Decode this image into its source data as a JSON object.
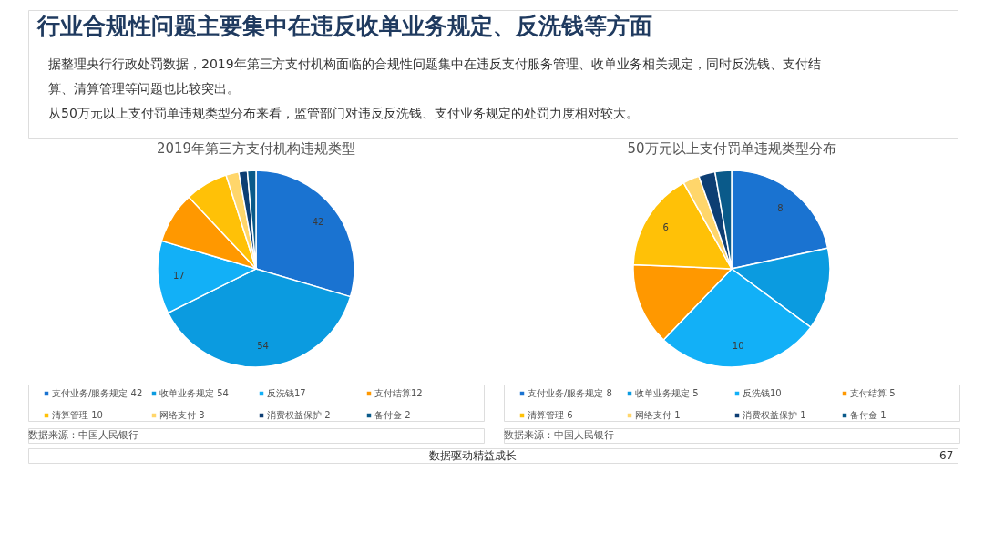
{
  "chart_data": [
    {
      "type": "pie",
      "title": "2019年第三方支付机构违规类型",
      "categories": [
        "支付业务/服务规定 42",
        "收单业务规定 54",
        "反洗钱17",
        "支付结算12",
        "清算管理 10",
        "网络支付 3",
        "消费权益保护 2",
        "备付金 2"
      ],
      "values": [
        42,
        54,
        17,
        12,
        10,
        3,
        2,
        2
      ],
      "value_labels": [
        "42",
        "54",
        "17",
        null,
        null,
        null,
        null,
        null
      ],
      "colors": [
        "#1a73d1",
        "#0b9be0",
        "#12b0f7",
        "#ff9800",
        "#ffc107",
        "#ffd66b",
        "#0d3e73",
        "#0a5a8a"
      ],
      "legend": "bottom",
      "annotations": [
        "行业合规性问题主要集中在违反收单业务规定、反洗钱等方面",
        "据整理央行行政处罚数据，2019年第三方支付机构面临的合规性问题集中在违反支付服务管理、收单业务相关规定，同时反洗钱、支付结算、清算管理等问题也比较突出。",
        "从50万元以上支付罚单违规类型分布来看，监管部门对违反反洗钱、支付业务规定的处罚力度相对较大。",
        "数据来源：中国人民银行"
      ]
    },
    {
      "type": "pie",
      "title": "50万元以上支付罚单违规类型分布",
      "categories": [
        "支付业务/服务规定 8",
        "收单业务规定 5",
        "反洗钱10",
        "支付结算 5",
        "清算管理 6",
        "网络支付 1",
        "消费权益保护 1",
        "备付金 1"
      ],
      "values": [
        8,
        5,
        10,
        5,
        6,
        1,
        1,
        1
      ],
      "value_labels": [
        "8",
        null,
        "10",
        null,
        "6",
        null,
        null,
        null
      ],
      "colors": [
        "#1a73d1",
        "#0b9be0",
        "#12b0f7",
        "#ff9800",
        "#ffc107",
        "#ffd66b",
        "#0d3e73",
        "#0a5a8a"
      ],
      "legend": "bottom",
      "annotations": [
        "数据来源：中国人民银行",
        "数据驱动精益成长",
        "67"
      ]
    }
  ]
}
